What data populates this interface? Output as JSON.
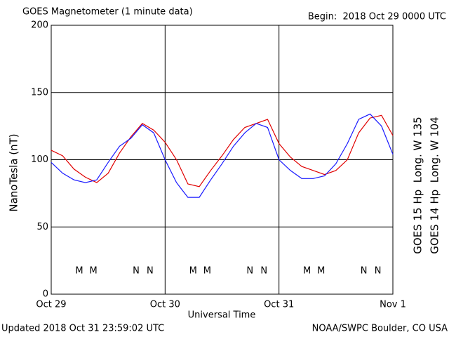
{
  "chart_data": {
    "type": "line",
    "title": "GOES Magnetometer (1 minute data)",
    "subtitle": "Begin:  2018 Oct 29 0000 UTC",
    "y_label": "NanoTesla (nT)",
    "x_label": "Universal Time",
    "footer_left": "Updated 2018 Oct 31 23:59:02 UTC",
    "footer_right": "NOAA/SWPC Boulder, CO USA",
    "grid": true,
    "xlim": [
      0,
      3
    ],
    "xticks": [
      {
        "value": 0,
        "label": "Oct 29"
      },
      {
        "value": 1,
        "label": "Oct 30"
      },
      {
        "value": 2,
        "label": "Oct 31"
      },
      {
        "value": 3,
        "label": "Nov 1"
      }
    ],
    "ylim": [
      0,
      200
    ],
    "yticks": [
      0,
      50,
      100,
      150,
      200
    ],
    "x": [
      0,
      0.1,
      0.2,
      0.3,
      0.4,
      0.5,
      0.6,
      0.7,
      0.8,
      0.9,
      1.0,
      1.1,
      1.2,
      1.3,
      1.4,
      1.5,
      1.6,
      1.7,
      1.8,
      1.9,
      2.0,
      2.1,
      2.2,
      2.3,
      2.4,
      2.5,
      2.6,
      2.7,
      2.8,
      2.9,
      3.0
    ],
    "series": [
      {
        "name": "GOES 15 Hp  Long. W 135",
        "color": "#e00000",
        "values": [
          107,
          103,
          93,
          87,
          83,
          90,
          105,
          117,
          127,
          122,
          113,
          100,
          82,
          80,
          92,
          103,
          115,
          124,
          127,
          130,
          112,
          102,
          95,
          92,
          89,
          92,
          100,
          120,
          131,
          133,
          118
        ]
      },
      {
        "name": "GOES 14 Hp  Long. W 104",
        "color": "#1a1aff",
        "values": [
          98,
          90,
          85,
          83,
          85,
          98,
          110,
          116,
          126,
          120,
          100,
          83,
          72,
          72,
          85,
          97,
          110,
          120,
          127,
          124,
          100,
          92,
          86,
          86,
          88,
          97,
          112,
          130,
          134,
          125,
          104
        ]
      }
    ],
    "markers": [
      {
        "text": "M",
        "x": 0.246,
        "color": "#1a1aff"
      },
      {
        "text": "M",
        "x": 0.37,
        "color": "#e00000"
      },
      {
        "text": "N",
        "x": 0.745,
        "color": "#1a1aff"
      },
      {
        "text": "N",
        "x": 0.868,
        "color": "#e00000"
      },
      {
        "text": "M",
        "x": 1.246,
        "color": "#1a1aff"
      },
      {
        "text": "M",
        "x": 1.37,
        "color": "#e00000"
      },
      {
        "text": "N",
        "x": 1.745,
        "color": "#1a1aff"
      },
      {
        "text": "N",
        "x": 1.868,
        "color": "#e00000"
      },
      {
        "text": "M",
        "x": 2.246,
        "color": "#1a1aff"
      },
      {
        "text": "M",
        "x": 2.37,
        "color": "#e00000"
      },
      {
        "text": "N",
        "x": 2.745,
        "color": "#1a1aff"
      },
      {
        "text": "N",
        "x": 2.868,
        "color": "#e00000"
      }
    ]
  }
}
